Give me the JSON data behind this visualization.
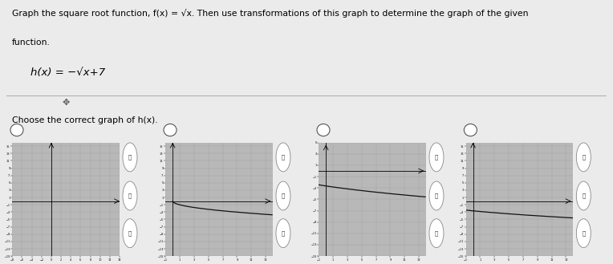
{
  "title_line1": "Graph the square root function, f(x) = √x. Then use transformations of this graph to determine the graph of the given",
  "title_line2": "function.",
  "function_label": "h(x) = −√x+7",
  "subtitle": "Choose the correct graph of h(x).",
  "graphs": [
    {
      "curve": "none",
      "xlim": [
        -8,
        14
      ],
      "ylim": [
        -15,
        16
      ]
    },
    {
      "curve": "neg_sqrt_x",
      "xlim": [
        -1,
        14
      ],
      "ylim": [
        -15,
        16
      ]
    },
    {
      "curve": "neg_sqrt_x_p7_lower",
      "xlim": [
        -1,
        14
      ],
      "ylim": [
        -15,
        5
      ]
    },
    {
      "curve": "neg_sqrt_x_p7",
      "xlim": [
        -1,
        14
      ],
      "ylim": [
        -15,
        16
      ]
    }
  ],
  "page_bg": "#ebebeb",
  "graph_bg": "#b8b8b8",
  "grid_color": "#888888",
  "curve_color": "#111111"
}
